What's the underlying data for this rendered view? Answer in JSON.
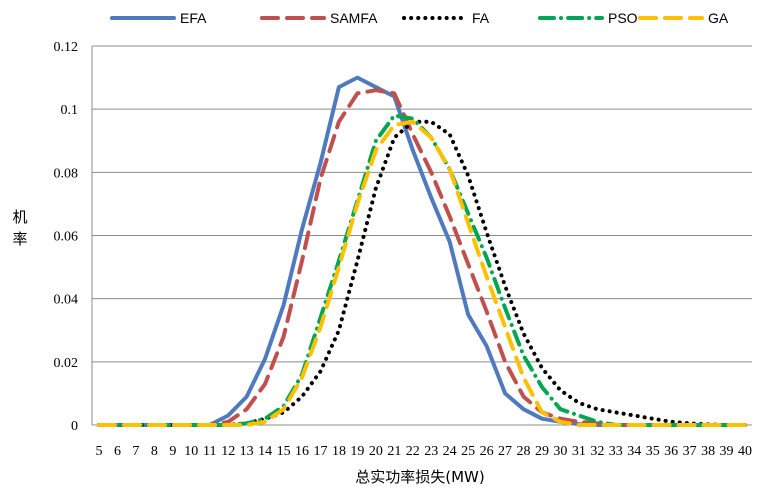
{
  "chart_data": {
    "type": "line",
    "title": "",
    "xlabel": "总实功率损失(MW)",
    "ylabel": "机率",
    "ylim": [
      0,
      0.12
    ],
    "yticks": [
      "0",
      "0.02",
      "0.04",
      "0.06",
      "0.08",
      "0.1",
      "0.12"
    ],
    "grid": true,
    "legend_position": "top",
    "x": [
      5,
      6,
      7,
      8,
      9,
      10,
      11,
      12,
      13,
      14,
      15,
      16,
      17,
      18,
      19,
      20,
      21,
      22,
      23,
      24,
      25,
      26,
      27,
      28,
      29,
      30,
      31,
      32,
      33,
      34,
      35,
      36,
      37,
      38,
      39,
      40
    ],
    "series": [
      {
        "name": "EFA",
        "color": "#4f7ac0",
        "dash": "solid",
        "values": [
          0,
          0,
          0,
          0,
          0,
          0,
          0,
          0.003,
          0.009,
          0.021,
          0.038,
          0.062,
          0.083,
          0.107,
          0.11,
          0.107,
          0.104,
          0.087,
          0.072,
          0.058,
          0.035,
          0.025,
          0.01,
          0.005,
          0.002,
          0.001,
          0.0003,
          0,
          0,
          0,
          0,
          0,
          0,
          0,
          0,
          0
        ]
      },
      {
        "name": "SAMFA",
        "color": "#c0504d",
        "dash": "long-dash",
        "values": [
          0,
          0,
          0,
          0,
          0,
          0,
          0,
          0.001,
          0.005,
          0.013,
          0.028,
          0.052,
          0.078,
          0.096,
          0.105,
          0.106,
          0.105,
          0.092,
          0.08,
          0.066,
          0.051,
          0.036,
          0.02,
          0.009,
          0.004,
          0.002,
          0.001,
          0.0005,
          0,
          0,
          0,
          0,
          0,
          0,
          0,
          0
        ]
      },
      {
        "name": "FA",
        "color": "#000000",
        "dash": "dotted",
        "values": [
          0,
          0,
          0,
          0,
          0,
          0,
          0,
          0,
          0.0005,
          0.002,
          0.004,
          0.009,
          0.017,
          0.03,
          0.052,
          0.075,
          0.091,
          0.096,
          0.096,
          0.092,
          0.079,
          0.061,
          0.044,
          0.029,
          0.018,
          0.011,
          0.007,
          0.005,
          0.004,
          0.003,
          0.002,
          0.001,
          0.0005,
          0.0002,
          0,
          0
        ]
      },
      {
        "name": "PSO",
        "color": "#00a651",
        "dash": "dash-dot",
        "values": [
          0,
          0,
          0,
          0,
          0,
          0,
          0,
          0,
          0.0005,
          0.002,
          0.006,
          0.016,
          0.034,
          0.052,
          0.071,
          0.09,
          0.098,
          0.097,
          0.091,
          0.081,
          0.067,
          0.053,
          0.037,
          0.022,
          0.012,
          0.005,
          0.003,
          0.001,
          0,
          0,
          0,
          0,
          0,
          0,
          0,
          0
        ]
      },
      {
        "name": "GA",
        "color": "#ffc000",
        "dash": "long-dash",
        "values": [
          0,
          0,
          0,
          0,
          0,
          0,
          0,
          0,
          0,
          0.001,
          0.005,
          0.015,
          0.031,
          0.05,
          0.07,
          0.087,
          0.095,
          0.096,
          0.091,
          0.081,
          0.064,
          0.047,
          0.031,
          0.015,
          0.004,
          0.001,
          0,
          0,
          0,
          0,
          0,
          0,
          0,
          0,
          0,
          0
        ]
      }
    ]
  }
}
